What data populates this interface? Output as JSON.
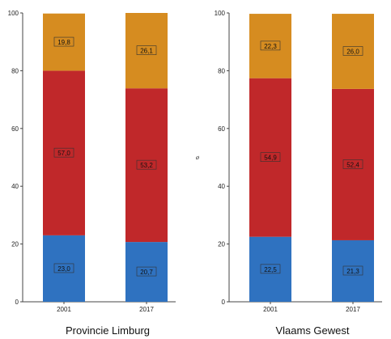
{
  "chart_data": [
    {
      "type": "bar",
      "stacked": true,
      "title": "Provincie Limburg",
      "categories": [
        "2001",
        "2017"
      ],
      "series": [
        {
          "values": [
            23.0,
            20.7
          ],
          "color": "#2f72c0"
        },
        {
          "values": [
            57.0,
            53.2
          ],
          "color": "#c0282a"
        },
        {
          "values": [
            19.8,
            26.1
          ],
          "color": "#d68c20"
        }
      ],
      "ylim": [
        0,
        100
      ],
      "yticks": [
        "0",
        "20",
        "40",
        "60",
        "80",
        "100"
      ],
      "grid": false
    },
    {
      "type": "bar",
      "stacked": true,
      "title": "Vlaams Gewest",
      "categories": [
        "2001",
        "2017"
      ],
      "series": [
        {
          "values": [
            22.5,
            21.3
          ],
          "color": "#2f72c0"
        },
        {
          "values": [
            54.9,
            52.4
          ],
          "color": "#c0282a"
        },
        {
          "values": [
            22.3,
            26.0
          ],
          "color": "#d68c20"
        }
      ],
      "ylim": [
        0,
        100
      ],
      "yticks": [
        "0",
        "20",
        "40",
        "60",
        "80",
        "100"
      ],
      "grid": false
    }
  ],
  "stray_mark": "ø"
}
